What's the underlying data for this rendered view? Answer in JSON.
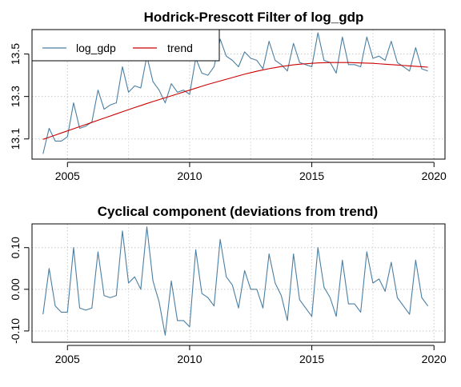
{
  "chart_data": [
    {
      "type": "line",
      "title": "Hodrick-Prescott Filter of log_gdp",
      "xlabel": "",
      "ylabel": "",
      "xlim": [
        2003.55,
        2020.45
      ],
      "ylim": [
        13.005,
        13.615
      ],
      "x_ticks": [
        2005,
        2010,
        2015,
        2020
      ],
      "y_ticks": [
        13.1,
        13.3,
        13.5
      ],
      "grid": true,
      "legend": {
        "placement": "top-left",
        "entries": [
          "log_gdp",
          "trend"
        ]
      },
      "x": [
        2004,
        2004.25,
        2004.5,
        2004.75,
        2005,
        2005.25,
        2005.5,
        2005.75,
        2006,
        2006.25,
        2006.5,
        2006.75,
        2007,
        2007.25,
        2007.5,
        2007.75,
        2008,
        2008.25,
        2008.5,
        2008.75,
        2009,
        2009.25,
        2009.5,
        2009.75,
        2010,
        2010.25,
        2010.5,
        2010.75,
        2011,
        2011.25,
        2011.5,
        2011.75,
        2012,
        2012.25,
        2012.5,
        2012.75,
        2013,
        2013.25,
        2013.5,
        2013.75,
        2014,
        2014.25,
        2014.5,
        2014.75,
        2015,
        2015.25,
        2015.5,
        2015.75,
        2016,
        2016.25,
        2016.5,
        2016.75,
        2017,
        2017.25,
        2017.5,
        2017.75,
        2018,
        2018.25,
        2018.5,
        2018.75,
        2019,
        2019.25,
        2019.5,
        2019.75
      ],
      "series": [
        {
          "name": "log_gdp",
          "color": "#4a7fa3",
          "values": [
            13.03,
            13.15,
            13.09,
            13.09,
            13.11,
            13.27,
            13.15,
            13.16,
            13.18,
            13.33,
            13.24,
            13.26,
            13.27,
            13.44,
            13.32,
            13.35,
            13.34,
            13.49,
            13.37,
            13.33,
            13.27,
            13.36,
            13.32,
            13.33,
            13.31,
            13.48,
            13.41,
            13.4,
            13.44,
            13.57,
            13.49,
            13.47,
            13.44,
            13.51,
            13.48,
            13.47,
            13.43,
            13.56,
            13.47,
            13.45,
            13.42,
            13.55,
            13.46,
            13.45,
            13.44,
            13.6,
            13.47,
            13.46,
            13.41,
            13.58,
            13.45,
            13.45,
            13.44,
            13.58,
            13.48,
            13.49,
            13.47,
            13.56,
            13.46,
            13.44,
            13.42,
            13.53,
            13.43,
            13.42
          ]
        },
        {
          "name": "trend",
          "color": "#cc0000",
          "values": [
            13.098,
            13.108,
            13.118,
            13.128,
            13.138,
            13.148,
            13.158,
            13.168,
            13.178,
            13.188,
            13.198,
            13.208,
            13.218,
            13.228,
            13.238,
            13.248,
            13.257,
            13.267,
            13.276,
            13.285,
            13.294,
            13.303,
            13.312,
            13.321,
            13.33,
            13.339,
            13.348,
            13.357,
            13.365,
            13.373,
            13.381,
            13.389,
            13.397,
            13.405,
            13.412,
            13.419,
            13.425,
            13.431,
            13.436,
            13.441,
            13.445,
            13.449,
            13.452,
            13.454,
            13.456,
            13.458,
            13.459,
            13.46,
            13.46,
            13.46,
            13.46,
            13.459,
            13.458,
            13.457,
            13.456,
            13.454,
            13.452,
            13.45,
            13.448,
            13.446,
            13.444,
            13.442,
            13.44,
            13.438
          ]
        }
      ]
    },
    {
      "type": "line",
      "title": "Cyclical component (deviations from trend)",
      "xlabel": "",
      "ylabel": "",
      "xlim": [
        2003.55,
        2020.45
      ],
      "ylim": [
        -0.127,
        0.157
      ],
      "x_ticks": [
        2005,
        2010,
        2015,
        2020
      ],
      "y_ticks": [
        -0.1,
        0.0,
        0.1
      ],
      "y_tick_labels": [
        "-0.10",
        "0.00",
        "0.10"
      ],
      "grid": true,
      "x": [
        2004,
        2004.25,
        2004.5,
        2004.75,
        2005,
        2005.25,
        2005.5,
        2005.75,
        2006,
        2006.25,
        2006.5,
        2006.75,
        2007,
        2007.25,
        2007.5,
        2007.75,
        2008,
        2008.25,
        2008.5,
        2008.75,
        2009,
        2009.25,
        2009.5,
        2009.75,
        2010,
        2010.25,
        2010.5,
        2010.75,
        2011,
        2011.25,
        2011.5,
        2011.75,
        2012,
        2012.25,
        2012.5,
        2012.75,
        2013,
        2013.25,
        2013.5,
        2013.75,
        2014,
        2014.25,
        2014.5,
        2014.75,
        2015,
        2015.25,
        2015.5,
        2015.75,
        2016,
        2016.25,
        2016.5,
        2016.75,
        2017,
        2017.25,
        2017.5,
        2017.75,
        2018,
        2018.25,
        2018.5,
        2018.75,
        2019,
        2019.25,
        2019.5,
        2019.75
      ],
      "series": [
        {
          "color": "#4a7fa3",
          "values": [
            -0.06,
            0.05,
            -0.04,
            -0.055,
            -0.055,
            0.1,
            -0.045,
            -0.05,
            -0.045,
            0.09,
            -0.015,
            -0.02,
            -0.015,
            0.14,
            0.015,
            0.03,
            0.0,
            0.15,
            0.02,
            -0.03,
            -0.11,
            0.02,
            -0.075,
            -0.075,
            -0.09,
            0.095,
            -0.01,
            -0.02,
            -0.04,
            0.12,
            0.03,
            0.01,
            -0.045,
            0.045,
            0.0,
            0.0,
            -0.045,
            0.085,
            0.015,
            -0.015,
            -0.075,
            0.085,
            -0.025,
            -0.045,
            -0.065,
            0.1,
            0.005,
            -0.02,
            -0.065,
            0.07,
            -0.035,
            -0.035,
            -0.055,
            0.09,
            0.015,
            0.025,
            -0.005,
            0.065,
            -0.02,
            -0.04,
            -0.06,
            0.07,
            -0.02,
            -0.04
          ]
        }
      ]
    }
  ]
}
